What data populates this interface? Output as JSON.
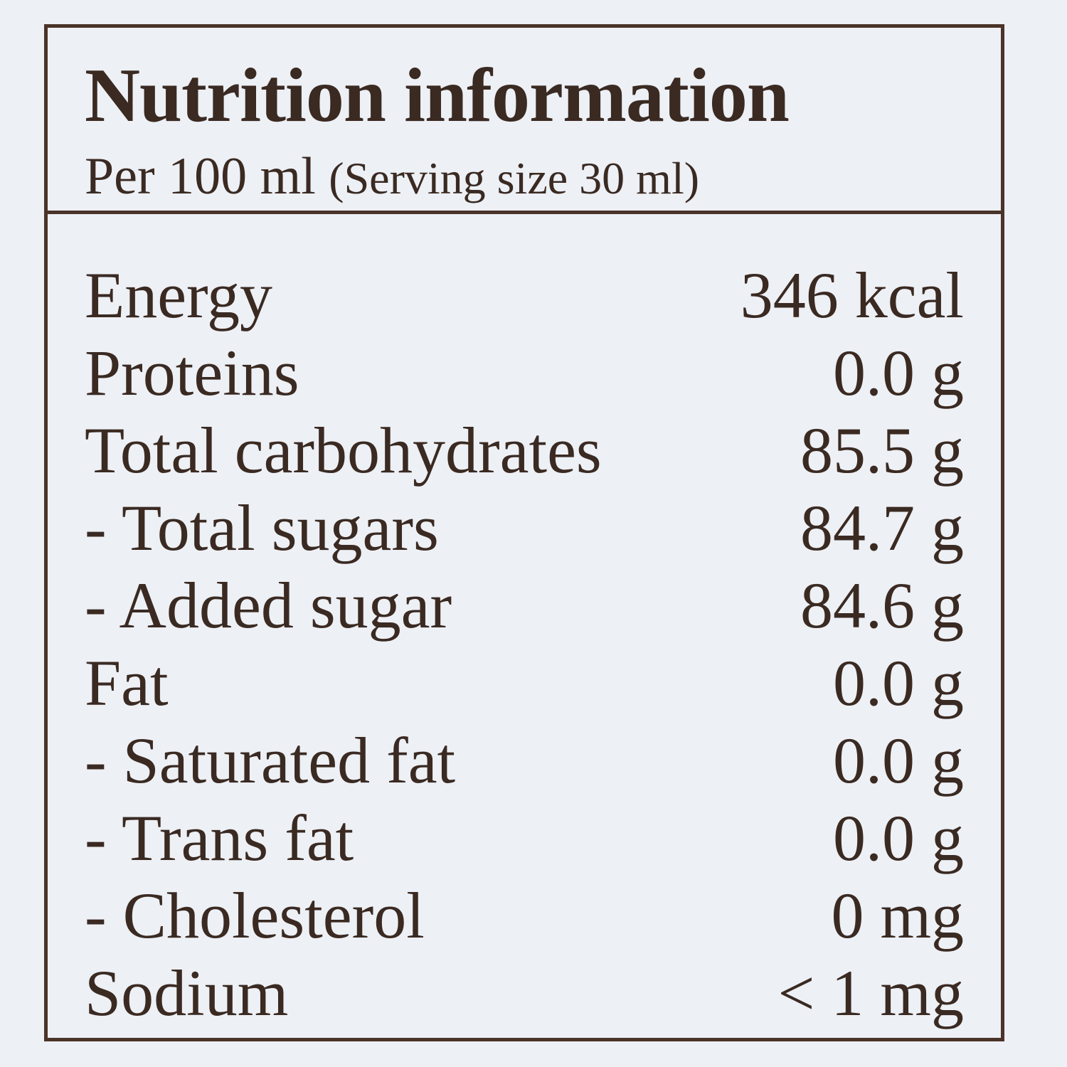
{
  "header": {
    "title": "Nutrition information",
    "subtitle": "Per 100 ml",
    "serving": "(Serving size 30 ml)"
  },
  "table": {
    "rows": [
      [
        "Energy",
        "346 kcal"
      ],
      [
        "Proteins",
        "0.0 g"
      ],
      [
        "Total carbohydrates",
        "85.5 g"
      ],
      [
        "- Total sugars",
        "84.7 g"
      ],
      [
        "- Added sugar",
        "84.6 g"
      ],
      [
        "Fat",
        "0.0 g"
      ],
      [
        "- Saturated fat",
        "0.0 g"
      ],
      [
        "- Trans fat",
        "0.0 g"
      ],
      [
        "- Cholesterol",
        "0 mg"
      ],
      [
        "Sodium",
        "< 1 mg"
      ]
    ]
  }
}
